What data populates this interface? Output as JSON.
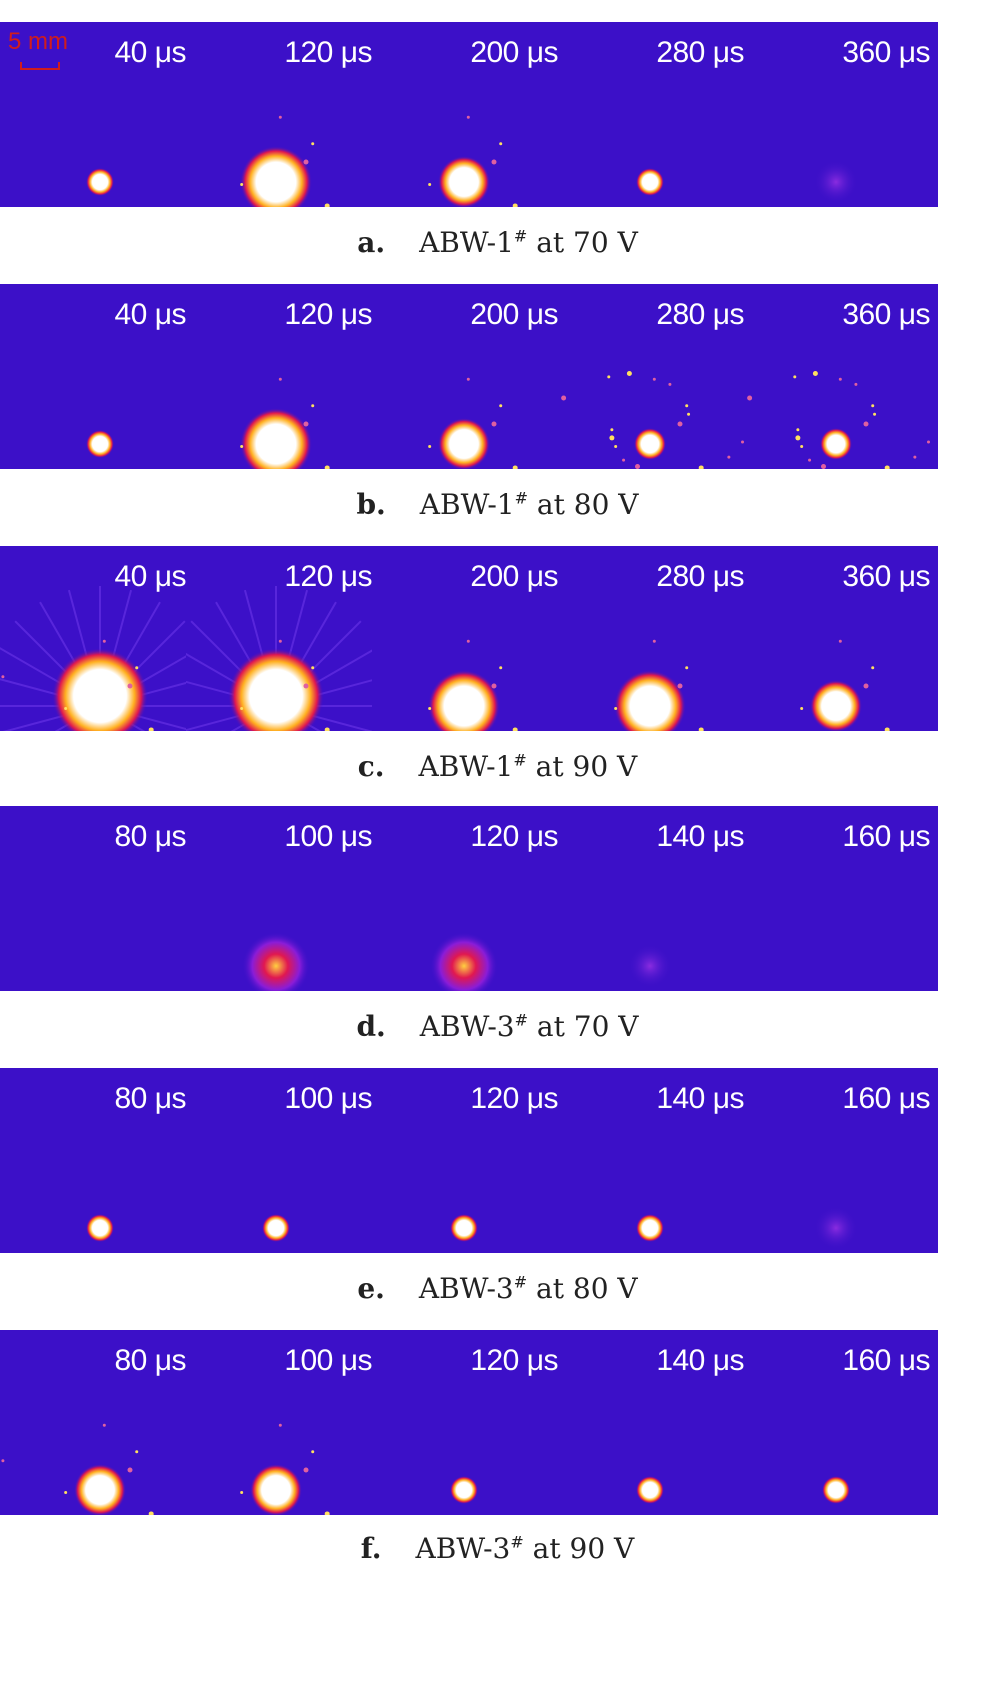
{
  "scale_bar": {
    "label": "5 mm",
    "color": "#d01c1c"
  },
  "colors": {
    "background": "#3c10c8",
    "hot": "#ffffff",
    "warm": "#ffb020",
    "red": "#e01850"
  },
  "rows": [
    {
      "letter": "a.",
      "sample": "ABW-1",
      "mark": "#",
      "rest": " at 70 V",
      "frames": [
        {
          "time": "40 μs",
          "blob": "small"
        },
        {
          "time": "120 μs",
          "blob": "large"
        },
        {
          "time": "200 μs",
          "blob": "medium"
        },
        {
          "time": "280 μs",
          "blob": "small"
        },
        {
          "time": "360 μs",
          "blob": "faint"
        }
      ]
    },
    {
      "letter": "b.",
      "sample": "ABW-1",
      "mark": "#",
      "rest": " at 80 V",
      "frames": [
        {
          "time": "40 μs",
          "blob": "small"
        },
        {
          "time": "120 μs",
          "blob": "large"
        },
        {
          "time": "200 μs",
          "blob": "medium"
        },
        {
          "time": "280 μs",
          "blob": "sparks"
        },
        {
          "time": "360 μs",
          "blob": "sparks"
        }
      ]
    },
    {
      "letter": "c.",
      "sample": "ABW-1",
      "mark": "#",
      "rest": " at 90 V",
      "frames": [
        {
          "time": "40 μs",
          "blob": "huge"
        },
        {
          "time": "120 μs",
          "blob": "huge"
        },
        {
          "time": "200 μs",
          "blob": "large"
        },
        {
          "time": "280 μs",
          "blob": "large"
        },
        {
          "time": "360 μs",
          "blob": "medium"
        }
      ]
    },
    {
      "letter": "d.",
      "sample": "ABW-3",
      "mark": "#",
      "rest": " at 70 V",
      "frames": [
        {
          "time": "80 μs",
          "blob": "none"
        },
        {
          "time": "100 μs",
          "blob": "diffuse"
        },
        {
          "time": "120 μs",
          "blob": "diffuse"
        },
        {
          "time": "140 μs",
          "blob": "faint"
        },
        {
          "time": "160 μs",
          "blob": "none"
        }
      ]
    },
    {
      "letter": "e.",
      "sample": "ABW-3",
      "mark": "#",
      "rest": " at 80 V",
      "frames": [
        {
          "time": "80 μs",
          "blob": "small"
        },
        {
          "time": "100 μs",
          "blob": "small"
        },
        {
          "time": "120 μs",
          "blob": "small"
        },
        {
          "time": "140 μs",
          "blob": "small"
        },
        {
          "time": "160 μs",
          "blob": "faint"
        }
      ]
    },
    {
      "letter": "f.",
      "sample": "ABW-3",
      "mark": "#",
      "rest": " at 90 V",
      "frames": [
        {
          "time": "80 μs",
          "blob": "medium"
        },
        {
          "time": "100 μs",
          "blob": "medium"
        },
        {
          "time": "120 μs",
          "blob": "small"
        },
        {
          "time": "140 μs",
          "blob": "small"
        },
        {
          "time": "160 μs",
          "blob": "small"
        }
      ]
    }
  ]
}
